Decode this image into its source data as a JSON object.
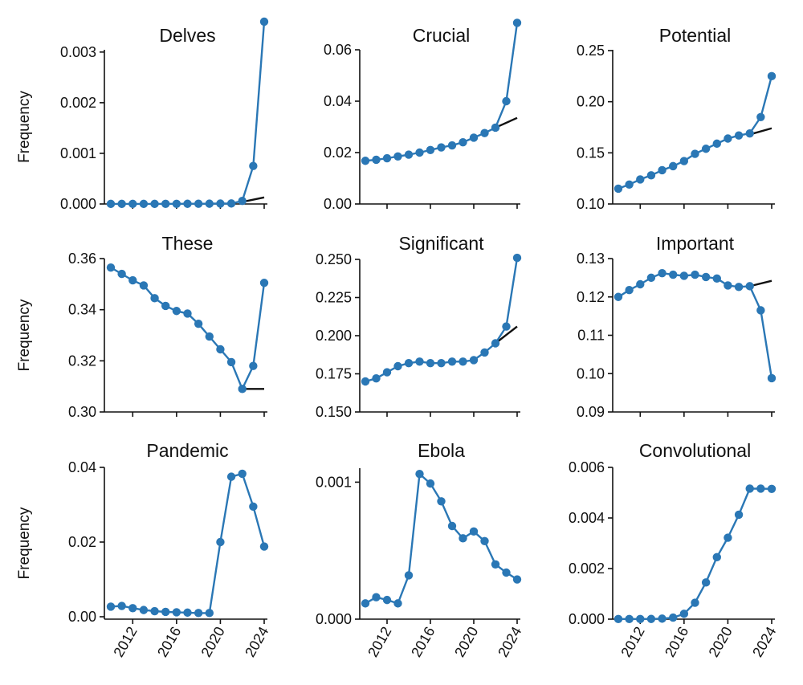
{
  "chart_data": [
    {
      "type": "line",
      "title": "Delves",
      "ylabel": "Frequency",
      "x": [
        2010,
        2011,
        2012,
        2013,
        2014,
        2015,
        2016,
        2017,
        2018,
        2019,
        2020,
        2021,
        2022,
        2023,
        2024
      ],
      "values": [
        2e-06,
        2e-06,
        2e-06,
        2e-06,
        2e-06,
        3e-06,
        3e-06,
        4e-06,
        5e-06,
        6e-06,
        8e-06,
        1e-05,
        6e-05,
        0.00075,
        0.0036
      ],
      "trend": {
        "x": [
          2022,
          2024
        ],
        "y": [
          4e-05,
          0.00013
        ]
      },
      "yticks": [
        "0.000",
        "0.001",
        "0.002",
        "0.003"
      ],
      "yticks_values": [
        0,
        0.001,
        0.002,
        0.003
      ],
      "ylim": [
        0,
        0.0036
      ],
      "xlim": [
        2010,
        2024
      ]
    },
    {
      "type": "line",
      "title": "Crucial",
      "ylabel": "",
      "x": [
        2010,
        2011,
        2012,
        2013,
        2014,
        2015,
        2016,
        2017,
        2018,
        2019,
        2020,
        2021,
        2022,
        2023,
        2024
      ],
      "values": [
        0.0168,
        0.0172,
        0.0178,
        0.0185,
        0.0192,
        0.02,
        0.021,
        0.022,
        0.0228,
        0.024,
        0.0258,
        0.0276,
        0.0297,
        0.04,
        0.0705
      ],
      "trend": {
        "x": [
          2022,
          2024
        ],
        "y": [
          0.0297,
          0.0335
        ]
      },
      "yticks": [
        "0.00",
        "0.02",
        "0.04",
        "0.06"
      ],
      "yticks_values": [
        0,
        0.02,
        0.04,
        0.06
      ],
      "ylim": [
        0,
        0.07
      ],
      "xlim": [
        2010,
        2024
      ]
    },
    {
      "type": "line",
      "title": "Potential",
      "ylabel": "",
      "x": [
        2010,
        2011,
        2012,
        2013,
        2014,
        2015,
        2016,
        2017,
        2018,
        2019,
        2020,
        2021,
        2022,
        2023,
        2024
      ],
      "values": [
        0.115,
        0.119,
        0.124,
        0.128,
        0.133,
        0.137,
        0.142,
        0.149,
        0.154,
        0.159,
        0.164,
        0.167,
        0.169,
        0.185,
        0.225
      ],
      "trend": {
        "x": [
          2022,
          2024
        ],
        "y": [
          0.168,
          0.174
        ]
      },
      "yticks": [
        "0.10",
        "0.15",
        "0.20",
        "0.25"
      ],
      "yticks_values": [
        0.1,
        0.15,
        0.2,
        0.25
      ],
      "ylim": [
        0.1,
        0.25
      ],
      "xlim": [
        2010,
        2024
      ]
    },
    {
      "type": "line",
      "title": "These",
      "ylabel": "Frequency",
      "x": [
        2010,
        2011,
        2012,
        2013,
        2014,
        2015,
        2016,
        2017,
        2018,
        2019,
        2020,
        2021,
        2022,
        2023,
        2024
      ],
      "values": [
        0.3565,
        0.354,
        0.3515,
        0.3495,
        0.3445,
        0.3415,
        0.3395,
        0.3385,
        0.3345,
        0.3295,
        0.3245,
        0.3195,
        0.309,
        0.318,
        0.3505
      ],
      "trend": {
        "x": [
          2022,
          2024
        ],
        "y": [
          0.309,
          0.309
        ]
      },
      "yticks": [
        "0.30",
        "0.32",
        "0.34",
        "0.36"
      ],
      "yticks_values": [
        0.3,
        0.32,
        0.34,
        0.36
      ],
      "ylim": [
        0.3,
        0.36
      ],
      "xlim": [
        2010,
        2024
      ]
    },
    {
      "type": "line",
      "title": "Significant",
      "ylabel": "",
      "x": [
        2010,
        2011,
        2012,
        2013,
        2014,
        2015,
        2016,
        2017,
        2018,
        2019,
        2020,
        2021,
        2022,
        2023,
        2024
      ],
      "values": [
        0.17,
        0.172,
        0.176,
        0.18,
        0.182,
        0.183,
        0.182,
        0.182,
        0.183,
        0.183,
        0.184,
        0.189,
        0.195,
        0.206,
        0.251
      ],
      "trend": {
        "x": [
          2022,
          2024
        ],
        "y": [
          0.195,
          0.206
        ]
      },
      "yticks": [
        "0.150",
        "0.175",
        "0.200",
        "0.225",
        "0.250"
      ],
      "yticks_values": [
        0.15,
        0.175,
        0.2,
        0.225,
        0.25
      ],
      "ylim": [
        0.15,
        0.25
      ],
      "xlim": [
        2010,
        2024
      ]
    },
    {
      "type": "line",
      "title": "Important",
      "ylabel": "",
      "x": [
        2010,
        2011,
        2012,
        2013,
        2014,
        2015,
        2016,
        2017,
        2018,
        2019,
        2020,
        2021,
        2022,
        2023,
        2024
      ],
      "values": [
        0.12,
        0.1218,
        0.1233,
        0.125,
        0.1262,
        0.1258,
        0.1255,
        0.1258,
        0.1252,
        0.1248,
        0.123,
        0.1226,
        0.1228,
        0.1165,
        0.0988
      ],
      "trend": {
        "x": [
          2022,
          2024
        ],
        "y": [
          0.1228,
          0.1242
        ]
      },
      "yticks": [
        "0.09",
        "0.10",
        "0.11",
        "0.12",
        "0.13"
      ],
      "yticks_values": [
        0.09,
        0.1,
        0.11,
        0.12,
        0.13
      ],
      "ylim": [
        0.09,
        0.13
      ],
      "xlim": [
        2010,
        2024
      ]
    },
    {
      "type": "line",
      "title": "Pandemic",
      "ylabel": "Frequency",
      "x": [
        2010,
        2011,
        2012,
        2013,
        2014,
        2015,
        2016,
        2017,
        2018,
        2019,
        2020,
        2021,
        2022,
        2023,
        2024
      ],
      "values": [
        0.0027,
        0.0029,
        0.0023,
        0.0018,
        0.0015,
        0.0013,
        0.0012,
        0.0011,
        0.001,
        0.001,
        0.02,
        0.0375,
        0.0383,
        0.0295,
        0.0188
      ],
      "yticks": [
        "0.00",
        "0.02",
        "0.04"
      ],
      "yticks_values": [
        0,
        0.02,
        0.04
      ],
      "ylim": [
        0,
        0.04
      ],
      "xlim": [
        2010,
        2024
      ]
    },
    {
      "type": "line",
      "title": "Ebola",
      "ylabel": "",
      "x": [
        2010,
        2011,
        2012,
        2013,
        2014,
        2015,
        2016,
        2017,
        2018,
        2019,
        2020,
        2021,
        2022,
        2023,
        2024
      ],
      "values": [
        0.000115,
        0.00016,
        0.00014,
        0.000115,
        0.00032,
        0.00106,
        0.00099,
        0.00086,
        0.00068,
        0.00059,
        0.00064,
        0.00057,
        0.0004,
        0.00034,
        0.00029
      ],
      "yticks": [
        "0.000",
        "0.001"
      ],
      "yticks_values": [
        0,
        0.001
      ],
      "ylim": [
        0,
        0.00102
      ],
      "xlim": [
        2010,
        2024
      ]
    },
    {
      "type": "line",
      "title": "Convolutional",
      "ylabel": "",
      "x": [
        2010,
        2011,
        2012,
        2013,
        2014,
        2015,
        2016,
        2017,
        2018,
        2019,
        2020,
        2021,
        2022,
        2023,
        2024
      ],
      "values": [
        5e-06,
        5e-06,
        5e-06,
        8e-06,
        2e-05,
        6e-05,
        0.00021,
        0.00065,
        0.00145,
        0.00245,
        0.00322,
        0.00413,
        0.00516,
        0.00516,
        0.00515
      ],
      "yticks": [
        "0.000",
        "0.002",
        "0.004",
        "0.006"
      ],
      "yticks_values": [
        0,
        0.002,
        0.004,
        0.006
      ],
      "ylim": [
        0,
        0.006
      ],
      "xlim": [
        2010,
        2024
      ]
    }
  ],
  "xticks": [
    "2012",
    "2016",
    "2020",
    "2024"
  ],
  "xticks_values": [
    2012,
    2016,
    2020,
    2024
  ],
  "colors": {
    "series": "#2a77b5",
    "trend": "#111111",
    "axis": "#111111"
  }
}
